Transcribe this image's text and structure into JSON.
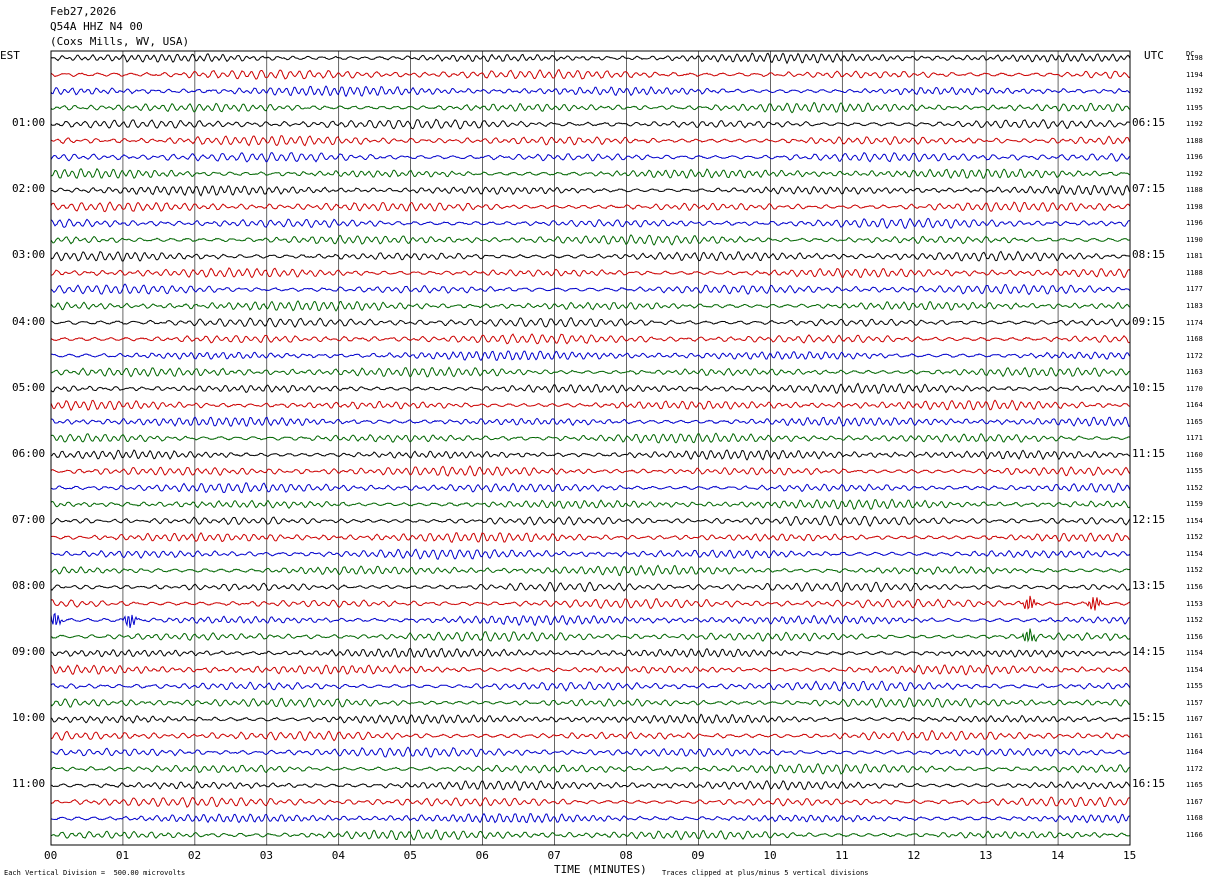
{
  "header": {
    "date": "Feb27,2026",
    "station": "Q54A HHZ N4 00",
    "location": "(Coxs Mills, WV, USA)"
  },
  "left_zone_label": "EST",
  "right_zone_label": "UTC",
  "right_column_header": "DC",
  "left_hour_labels": [
    "01:00",
    "02:00",
    "03:00",
    "04:00",
    "05:00",
    "06:00",
    "07:00",
    "08:00",
    "09:00",
    "10:00",
    "11:00"
  ],
  "right_hour_labels": [
    "06:15",
    "07:15",
    "08:15",
    "09:15",
    "10:15",
    "11:15",
    "12:15",
    "13:15",
    "14:15",
    "15:15",
    "16:15"
  ],
  "dc_values": [
    "1198",
    "1194",
    "1192",
    "1195",
    "1192",
    "1188",
    "1196",
    "1192",
    "1188",
    "1198",
    "1196",
    "1190",
    "1181",
    "1188",
    "1177",
    "1183",
    "1174",
    "1168",
    "1172",
    "1163",
    "1170",
    "1164",
    "1165",
    "1171",
    "1160",
    "1155",
    "1152",
    "1159",
    "1154",
    "1152",
    "1154",
    "1152",
    "1156",
    "1153",
    "1152",
    "1156",
    "1154",
    "1154",
    "1155",
    "1157",
    "1167",
    "1161",
    "1164",
    "1172",
    "1165",
    "1167",
    "1168",
    "1166"
  ],
  "footer": {
    "scale_note": "Each Vertical Division =  500.00 microvolts",
    "xlabel": "TIME (MINUTES)",
    "clip_note": "Traces clipped at plus/minus 5 vertical divisions"
  },
  "colors": {
    "trace_cycle": [
      "#000000",
      "#cc0000",
      "#0000cc",
      "#006600"
    ],
    "grid": "#000000",
    "background": "#ffffff"
  },
  "chart_data": {
    "type": "line",
    "title": "",
    "xlabel": "TIME (MINUTES)",
    "ylabel": "",
    "x_ticks": [
      "00",
      "01",
      "02",
      "03",
      "04",
      "05",
      "06",
      "07",
      "08",
      "09",
      "10",
      "11",
      "12",
      "13",
      "14",
      "15"
    ],
    "xlim": [
      0,
      15
    ],
    "trace_count": 48,
    "trace_duration_minutes": 15,
    "grid": true,
    "events": [
      {
        "trace": 33,
        "minute": 13.6,
        "note": "spike"
      },
      {
        "trace": 33,
        "minute": 14.5,
        "note": "spike"
      },
      {
        "trace": 34,
        "minute": 0.05,
        "note": "spike"
      },
      {
        "trace": 34,
        "minute": 1.1,
        "note": "spike"
      },
      {
        "trace": 35,
        "minute": 13.6,
        "note": "spike"
      }
    ]
  }
}
